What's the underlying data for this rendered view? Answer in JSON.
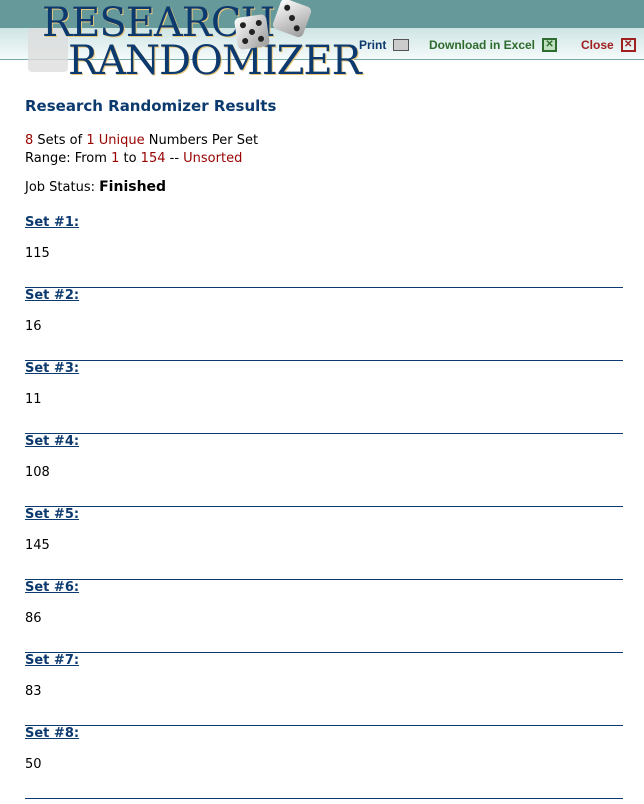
{
  "header": {
    "logo_line1": "RESEARCH",
    "logo_line2": "RANDOMIZER",
    "print": "Print",
    "download": "Download in Excel",
    "close": "Close",
    "colors": {
      "band": "#669999",
      "print": "#0d3a6e",
      "download": "#2e6b2e",
      "close": "#a02020"
    }
  },
  "title": "Research Randomizer Results",
  "summary": {
    "sets": "8",
    "sets_of": " Sets of ",
    "count": "1",
    "unique": " Unique",
    "per_set": " Numbers Per Set",
    "range_label": "Range: From ",
    "from": "1",
    "to_label": " to ",
    "to": "154",
    "sep": " -- ",
    "sorted": "Unsorted"
  },
  "job": {
    "label": "Job Status: ",
    "status": "Finished"
  },
  "sets": [
    {
      "label": "Set #1:",
      "value": "115"
    },
    {
      "label": "Set #2:",
      "value": "16"
    },
    {
      "label": "Set #3:",
      "value": "11"
    },
    {
      "label": "Set #4:",
      "value": "108"
    },
    {
      "label": "Set #5:",
      "value": "145"
    },
    {
      "label": "Set #6:",
      "value": "86"
    },
    {
      "label": "Set #7:",
      "value": "83"
    },
    {
      "label": "Set #8:",
      "value": "50"
    }
  ]
}
